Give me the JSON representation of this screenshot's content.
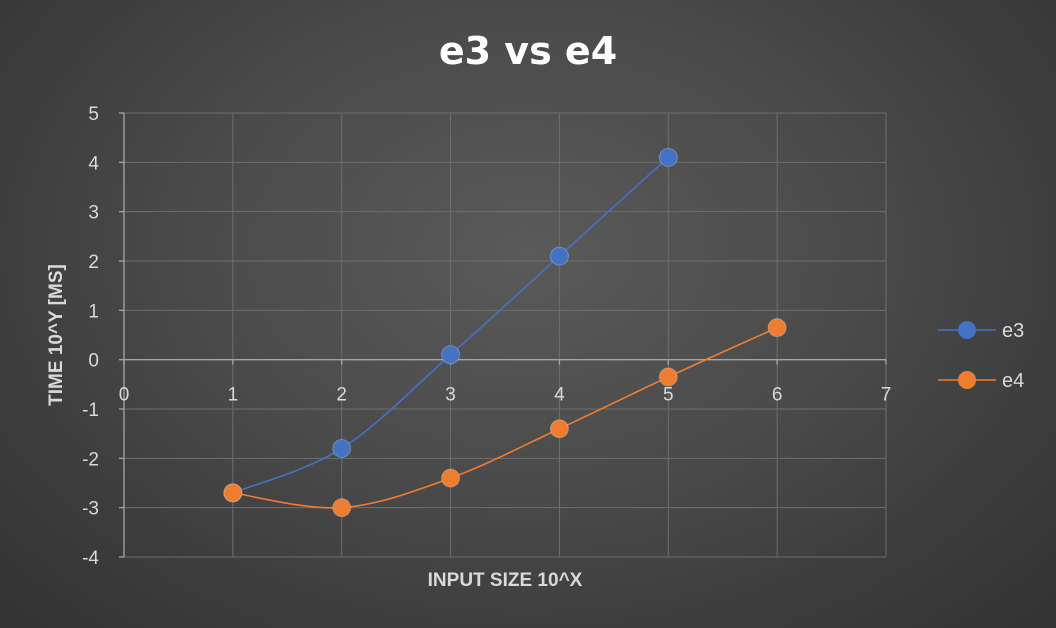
{
  "chart_data": {
    "type": "scatter",
    "title": "e3 vs e4",
    "xlabel": "INPUT SIZE 10^X",
    "ylabel": "TIME 10^Y [MS]",
    "xlim": [
      0,
      7
    ],
    "ylim": [
      -4,
      5
    ],
    "x_ticks": [
      "0",
      "1",
      "2",
      "3",
      "4",
      "5",
      "6",
      "7"
    ],
    "y_ticks": [
      "-4",
      "-3",
      "-2",
      "-1",
      "0",
      "1",
      "2",
      "3",
      "4",
      "5"
    ],
    "grid": true,
    "smooth_lines": true,
    "legend_position": "right",
    "series": [
      {
        "name": "e3",
        "color": "#4472C4",
        "x": [
          1,
          2,
          3,
          4,
          5
        ],
        "y": [
          -2.7,
          -1.8,
          0.1,
          2.1,
          4.1
        ]
      },
      {
        "name": "e4",
        "color": "#ED7D31",
        "x": [
          1,
          2,
          3,
          4,
          5,
          6
        ],
        "y": [
          -2.7,
          -3.0,
          -2.4,
          -1.4,
          -0.35,
          0.65
        ]
      }
    ]
  }
}
